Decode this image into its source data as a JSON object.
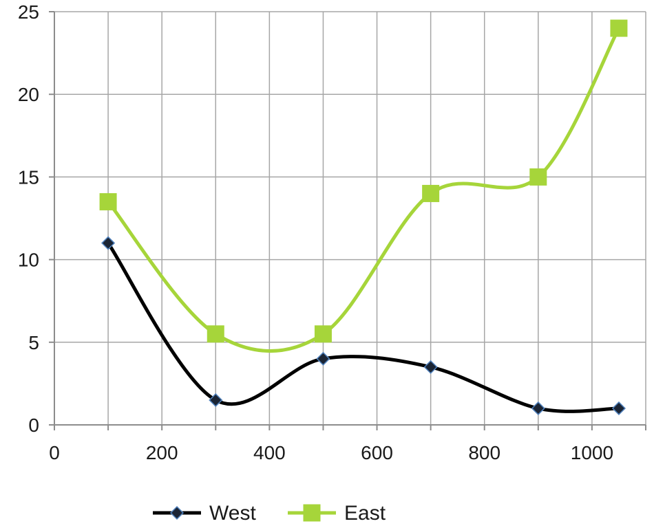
{
  "chart_data": {
    "type": "scatter",
    "smooth": true,
    "title": "",
    "xlabel": "",
    "ylabel": "",
    "xlim": [
      0,
      1100
    ],
    "ylim": [
      0,
      25
    ],
    "x_ticks": [
      0,
      200,
      400,
      600,
      800,
      1000
    ],
    "x_tick_labels": [
      "0",
      "200",
      "400",
      "600",
      "800",
      "1000"
    ],
    "y_ticks": [
      0,
      5,
      10,
      15,
      20,
      25
    ],
    "y_tick_labels": [
      "0",
      "5",
      "10",
      "15",
      "20",
      "25"
    ],
    "grid": true,
    "legend_position": "bottom",
    "series": [
      {
        "name": "West",
        "color": "#000000",
        "marker": "diamond",
        "marker_fill": "#1b2535",
        "marker_stroke": "#4f81bd",
        "x": [
          100,
          300,
          500,
          700,
          900,
          1050
        ],
        "y": [
          11,
          1.5,
          4,
          3.5,
          1,
          1
        ]
      },
      {
        "name": "East",
        "color": "#a6d53a",
        "marker": "square",
        "marker_fill": "#a6d53a",
        "marker_stroke": "#a6d53a",
        "x": [
          100,
          300,
          500,
          700,
          900,
          1050
        ],
        "y": [
          13.5,
          5.5,
          5.5,
          14,
          15,
          24
        ]
      }
    ]
  }
}
